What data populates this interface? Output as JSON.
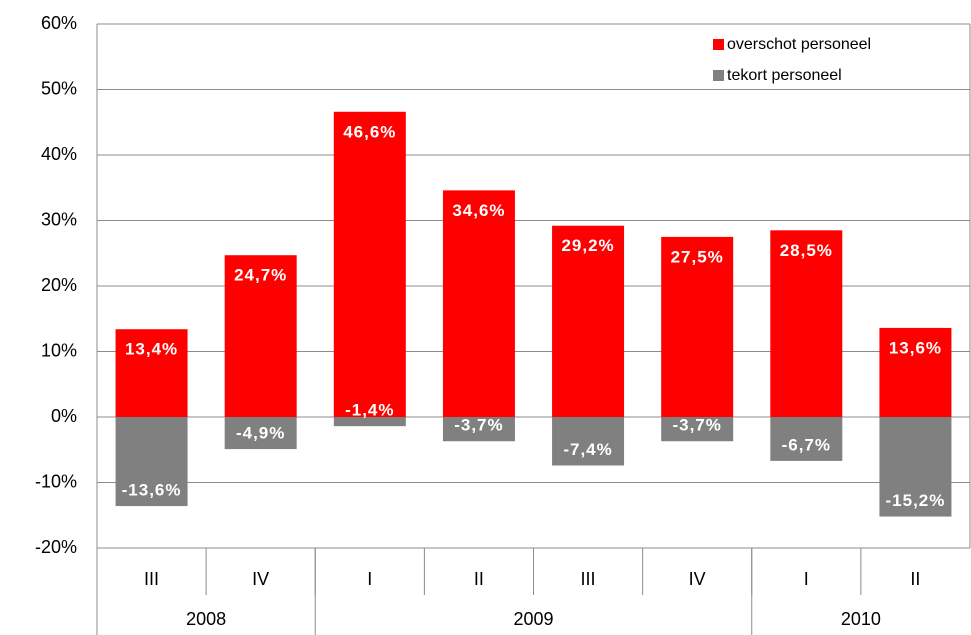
{
  "chart_data": {
    "type": "bar",
    "categories": [
      "III",
      "IV",
      "I",
      "II",
      "III",
      "IV",
      "I",
      "II"
    ],
    "groups": [
      {
        "name": "2008",
        "count": 2
      },
      {
        "name": "2009",
        "count": 4
      },
      {
        "name": "2010",
        "count": 2
      }
    ],
    "series": [
      {
        "name": "overschot personeel",
        "color": "#ff0000",
        "values": [
          13.4,
          24.7,
          46.6,
          34.6,
          29.2,
          27.5,
          28.5,
          13.6
        ],
        "value_labels": [
          "13,4%",
          "24,7%",
          "46,6%",
          "34,6%",
          "29,2%",
          "27,5%",
          "28,5%",
          "13,6%"
        ]
      },
      {
        "name": "tekort personeel",
        "color": "#808080",
        "values": [
          -13.6,
          -4.9,
          -1.4,
          -3.7,
          -7.4,
          -3.7,
          -6.7,
          -15.2
        ],
        "value_labels": [
          "-13,6%",
          "-4,9%",
          "-1,4%",
          "-3,7%",
          "-7,4%",
          "-3,7%",
          "-6,7%",
          "-15,2%"
        ]
      }
    ],
    "ylim": [
      -20,
      60
    ],
    "yticks": [
      {
        "value": -20,
        "label": "-20%"
      },
      {
        "value": -10,
        "label": "-10%"
      },
      {
        "value": 0,
        "label": "0%"
      },
      {
        "value": 10,
        "label": "10%"
      },
      {
        "value": 20,
        "label": "20%"
      },
      {
        "value": 30,
        "label": "30%"
      },
      {
        "value": 40,
        "label": "40%"
      },
      {
        "value": 50,
        "label": "50%"
      },
      {
        "value": 60,
        "label": "60%"
      }
    ],
    "grid": true,
    "legend": "top-right",
    "stacked": true
  }
}
